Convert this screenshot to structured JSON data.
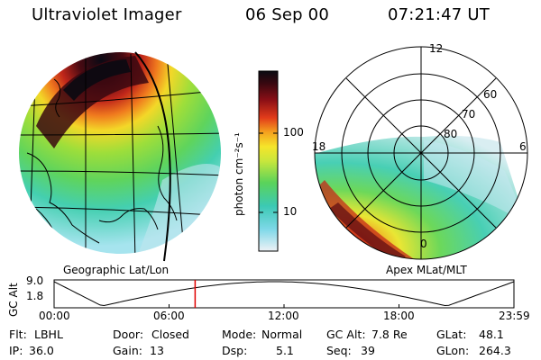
{
  "header": {
    "instrument": "Ultraviolet Imager",
    "date": "06 Sep 00",
    "time": "07:21:47 UT"
  },
  "left_panel": {
    "label": "Geographic Lat/Lon"
  },
  "right_panel": {
    "label": "Apex MLat/MLT",
    "mlt_labels": {
      "top": "12",
      "left": "18",
      "right": "6",
      "bottom": "0"
    },
    "lat_labels": [
      "60",
      "70",
      "80"
    ]
  },
  "colorbar": {
    "unit_label": "photon cm⁻²s⁻¹",
    "ticks": [
      "100",
      "10"
    ]
  },
  "altitude_plot": {
    "ylabel": "GC Alt",
    "yticks": [
      "9.0",
      "1.8"
    ],
    "xticks": [
      "00:00",
      "06:00",
      "12:00",
      "18:00",
      "23:59"
    ],
    "current_time_hours": 7.36,
    "marker_color": "#e00000"
  },
  "info": {
    "flt_label": "Flt:",
    "flt_value": "LBHL",
    "door_label": "Door:",
    "door_value": "Closed",
    "mode_label": "Mode:",
    "mode_value": "Normal",
    "gcalt_label": "GC Alt:",
    "gcalt_value": "7.8 Re",
    "glat_label": "GLat:",
    "glat_value": "48.1",
    "ip_label": "IP:",
    "ip_value": "36.0",
    "gain_label": "Gain:",
    "gain_value": "13",
    "dsp_label": "Dsp:",
    "dsp_value": "5.1",
    "seq_label": "Seq:",
    "seq_value": "39",
    "glon_label": "GLon:",
    "glon_value": "264.3"
  }
}
